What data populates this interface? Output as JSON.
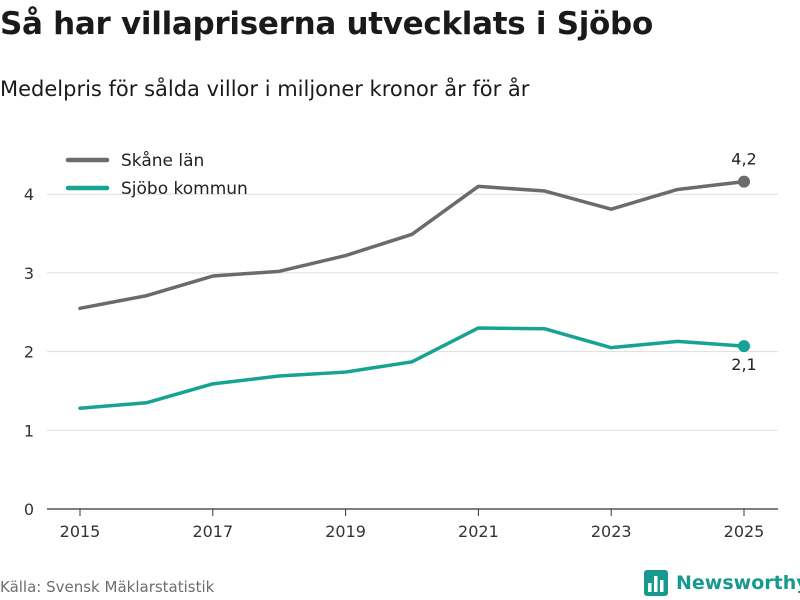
{
  "title": "Så har villapriserna utvecklats i Sjöbo",
  "subtitle": "Medelpris för sålda villor i miljoner kronor år för år",
  "source": "Källa: Svensk Mäklarstatistik",
  "brand": {
    "name": "Newsworthy",
    "icon": "bar-chart-logo-icon",
    "color": "#17998f"
  },
  "chart_data": {
    "type": "line",
    "x": [
      2015,
      2016,
      2017,
      2018,
      2019,
      2020,
      2021,
      2022,
      2023,
      2024,
      2025
    ],
    "xticks": [
      "2015",
      "2017",
      "2019",
      "2021",
      "2023",
      "2025"
    ],
    "ylim": [
      0,
      4.5
    ],
    "yticks": [
      "0",
      "1",
      "2",
      "3",
      "4"
    ],
    "grid": true,
    "legend_position": "top-left",
    "series": [
      {
        "name": "Skåne län",
        "color": "#6b6b6b",
        "values": [
          2.55,
          2.71,
          2.96,
          3.02,
          3.22,
          3.49,
          4.1,
          4.04,
          3.81,
          4.06,
          4.16
        ],
        "end_label": "4,2"
      },
      {
        "name": "Sjöbo kommun",
        "color": "#16a394",
        "values": [
          1.28,
          1.35,
          1.59,
          1.69,
          1.74,
          1.87,
          2.3,
          2.29,
          2.05,
          2.13,
          2.07
        ],
        "end_label": "2,1"
      }
    ]
  }
}
